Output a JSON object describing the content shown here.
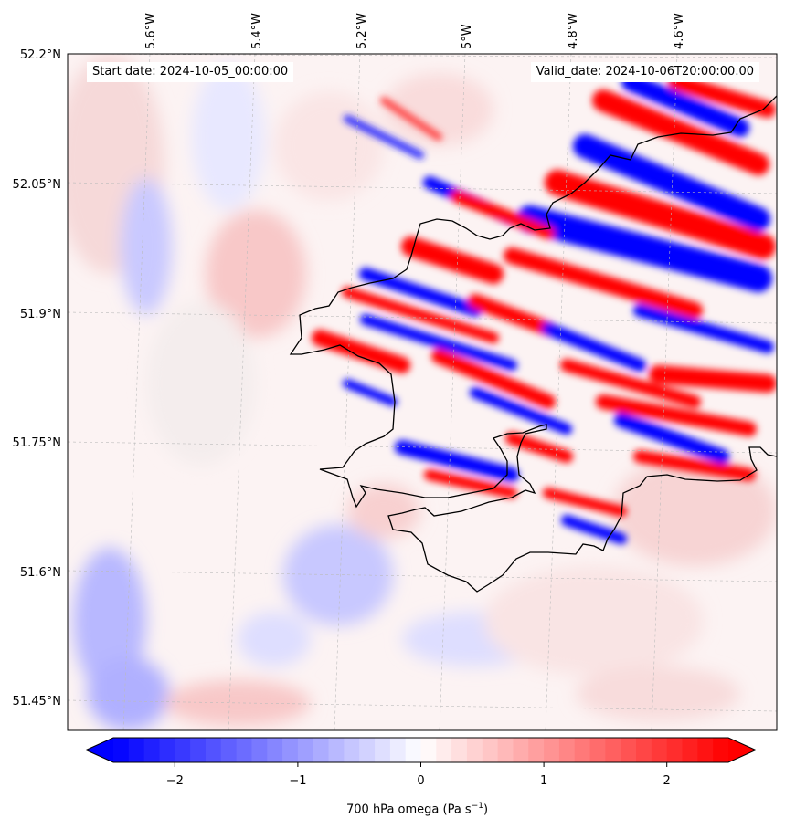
{
  "map": {
    "start_label": "Start date: 2024-10-05_00:00:00",
    "valid_label": "Valid_date: 2024-10-06T20:00:00.00",
    "lon_ticks": [
      "5.6°W",
      "5.4°W",
      "5.2°W",
      "5°W",
      "4.8°W",
      "4.6°W"
    ],
    "lat_ticks": [
      "52.2°N",
      "52.05°N",
      "51.9°N",
      "51.75°N",
      "51.6°N",
      "51.45°N"
    ],
    "field": "700 hPa omega",
    "colormap": "bwr",
    "colors": {
      "min": "#0000ff",
      "mid": "#ffffff",
      "max": "#ff0000",
      "coast": "#000000"
    }
  },
  "colorbar": {
    "label_main": "700 hPa omega (Pa s",
    "label_exp": "−1",
    "label_close": ")",
    "range": [
      -2.5,
      2.5
    ],
    "tick_values": [
      -2,
      -1,
      0,
      1,
      2
    ],
    "tick_labels": [
      "−2",
      "−1",
      "0",
      "1",
      "2"
    ],
    "extend": "both"
  }
}
